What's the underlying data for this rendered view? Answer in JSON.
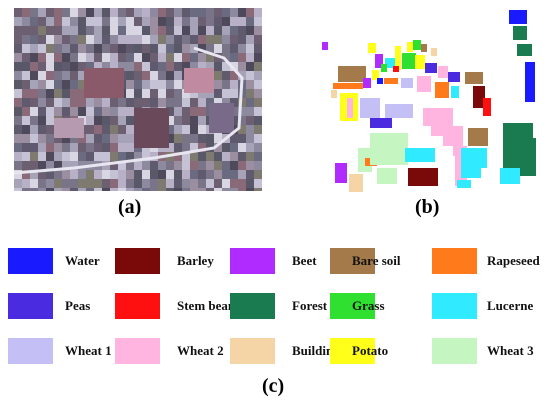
{
  "captions": {
    "a": "(a)",
    "b": "(b)",
    "c": "(c)"
  },
  "legend": [
    {
      "label": "Water",
      "color": "#1a1aff"
    },
    {
      "label": "Barley",
      "color": "#7a0a0a"
    },
    {
      "label": "Beet",
      "color": "#b02bff"
    },
    {
      "label": "Bare soil",
      "color": "#a57a4a"
    },
    {
      "label": "Rapeseed",
      "color": "#ff7a1a"
    },
    {
      "label": "Peas",
      "color": "#4a2be0"
    },
    {
      "label": "Stem beam",
      "color": "#ff1010"
    },
    {
      "label": "Forest",
      "color": "#1a7a50"
    },
    {
      "label": "Grass",
      "color": "#30e030"
    },
    {
      "label": "Lucerne",
      "color": "#30eaff"
    },
    {
      "label": "Wheat 1",
      "color": "#c4c0f5"
    },
    {
      "label": "Wheat 2",
      "color": "#ffb5e0"
    },
    {
      "label": "Building",
      "color": "#f5d5a5"
    },
    {
      "label": "Potato",
      "color": "#ffff1a"
    },
    {
      "label": "Wheat 3",
      "color": "#c5f5c0"
    }
  ]
}
